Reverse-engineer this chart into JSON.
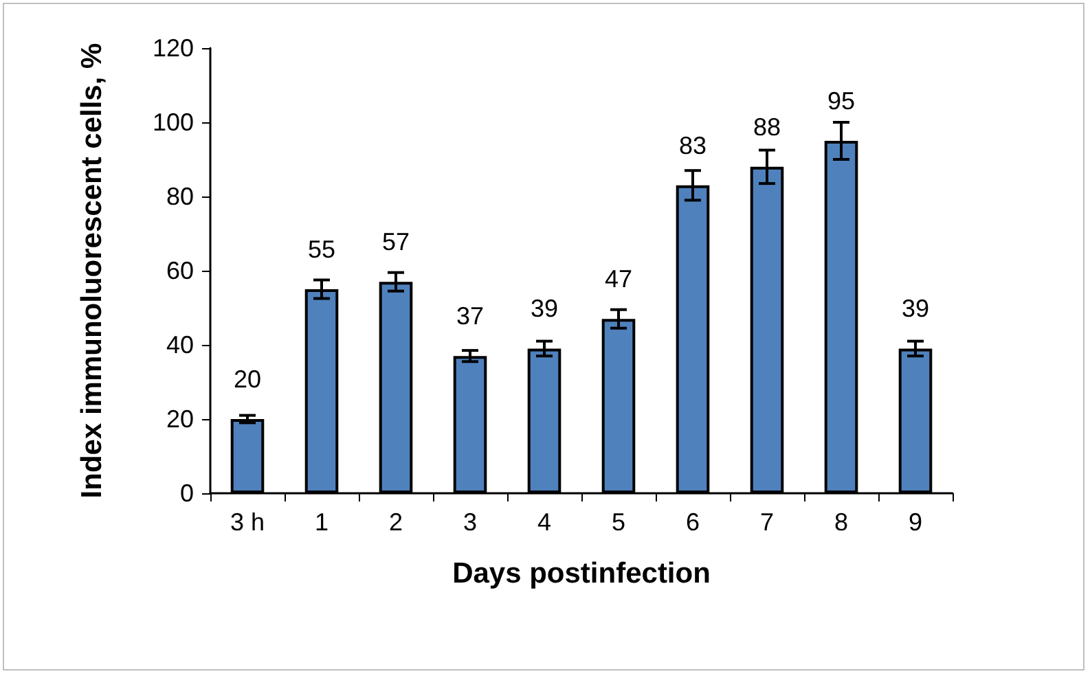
{
  "chart_data": {
    "type": "bar",
    "xlabel": "Days postinfection",
    "ylabel": "Index immunoluorescent cells, %",
    "categories": [
      "3 h",
      "1",
      "2",
      "3",
      "4",
      "5",
      "6",
      "7",
      "8",
      "9"
    ],
    "values": [
      20,
      55,
      57,
      37,
      39,
      47,
      83,
      88,
      95,
      39
    ],
    "errors": [
      1,
      2.5,
      2.5,
      1.5,
      2,
      2.5,
      4,
      4.5,
      5,
      2
    ],
    "color": "#4f81bd",
    "ylim": [
      0,
      120
    ],
    "yticks": [
      0,
      20,
      40,
      60,
      80,
      100,
      120
    ],
    "data_labels": true
  }
}
